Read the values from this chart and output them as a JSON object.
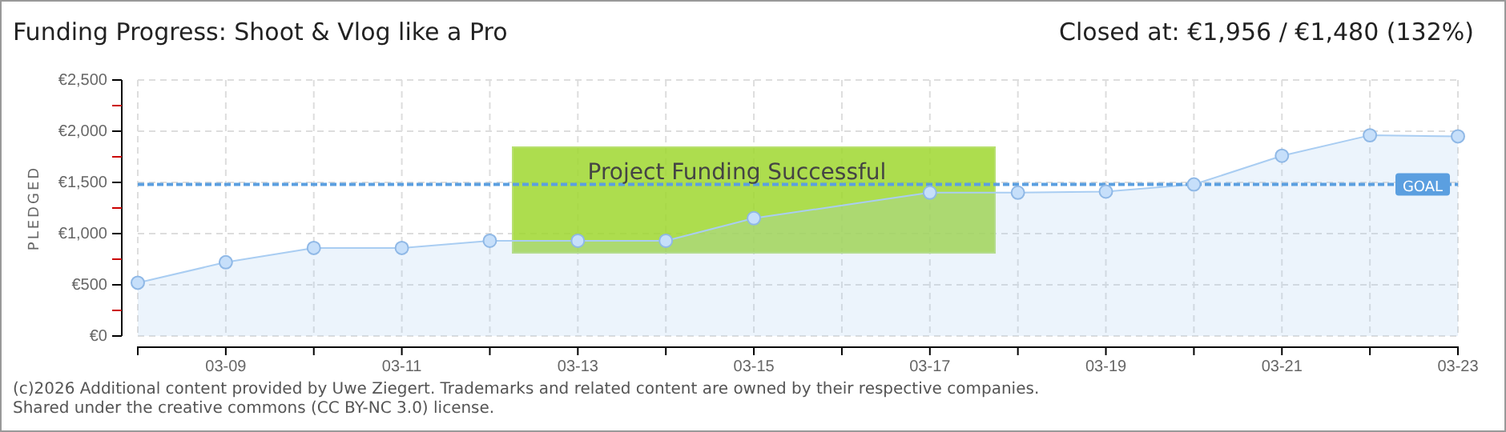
{
  "chart_data": {
    "type": "area",
    "title": "Funding Progress: Shoot & Vlog like a Pro",
    "subtitle": "Closed at:  €1,956 / €1,480 (132%)",
    "ylabel": "PLEDGED",
    "categories": [
      null,
      "03-09",
      null,
      "03-11",
      null,
      "03-13",
      null,
      "03-15",
      null,
      "03-17",
      null,
      "03-19",
      null,
      "03-21",
      null,
      "03-23"
    ],
    "series": [
      {
        "color": "#a9cdf2",
        "values": [
          520,
          720,
          860,
          860,
          930,
          930,
          930,
          1150,
          null,
          1400,
          1400,
          1410,
          1480,
          1760,
          1960,
          1950
        ]
      }
    ],
    "ylim": [
      0,
      2500
    ],
    "yticks": [
      {
        "value": 0,
        "label": "€0"
      },
      {
        "value": 250,
        "label": null
      },
      {
        "value": 500,
        "label": "€500"
      },
      {
        "value": 750,
        "label": null
      },
      {
        "value": 1000,
        "label": "€1,000"
      },
      {
        "value": 1250,
        "label": null
      },
      {
        "value": 1500,
        "label": "€1,500"
      },
      {
        "value": 1750,
        "label": null
      },
      {
        "value": 2000,
        "label": "€2,000"
      },
      {
        "value": 2250,
        "label": null
      },
      {
        "value": 2500,
        "label": "€2,500"
      }
    ],
    "grid": true,
    "marker": "circle",
    "ref_lines": [
      {
        "axis": "y",
        "value": 1480,
        "label": "GOAL",
        "color": "#5b9fe0",
        "line_style": "dashed"
      }
    ],
    "annotations": [
      "Project Funding Successful",
      "(c)2026 Additional content provided by Uwe Ziegert. Trademarks and related content are owned by their respective companies.",
      "Shared under the creative commons (CC BY-NC 3.0) license."
    ]
  }
}
